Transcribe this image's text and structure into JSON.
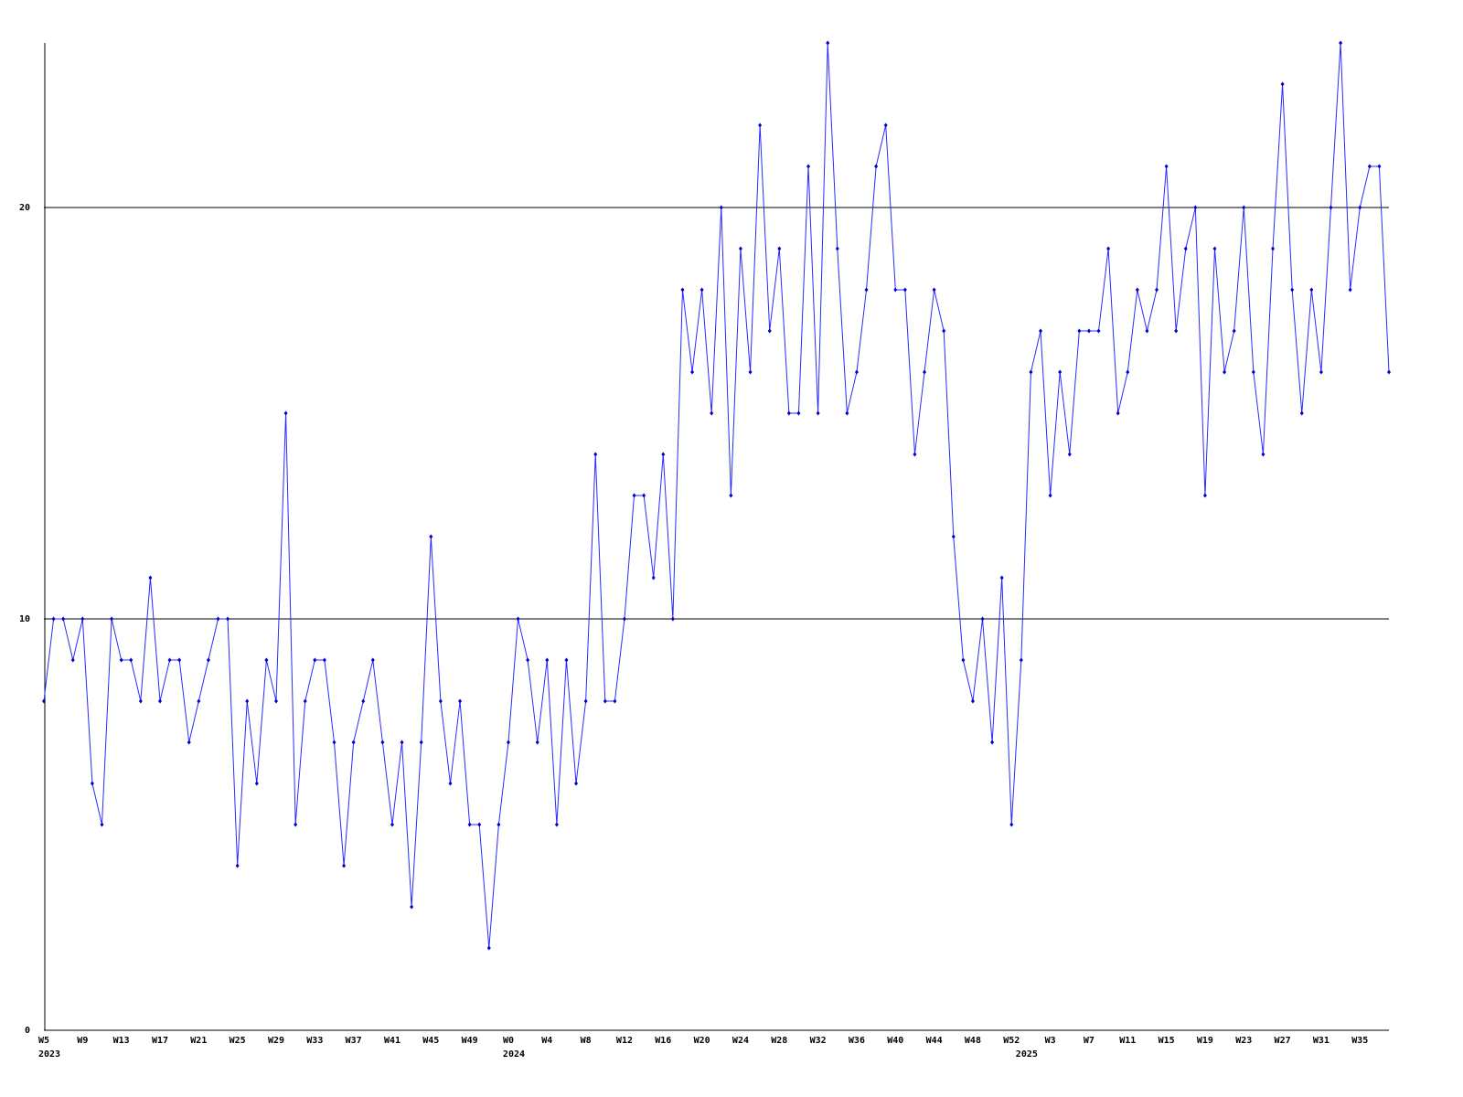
{
  "chart_data": {
    "type": "line",
    "categories": [
      "W5",
      null,
      null,
      null,
      "W9",
      null,
      null,
      null,
      "W13",
      null,
      null,
      null,
      "W17",
      null,
      null,
      null,
      "W21",
      null,
      null,
      null,
      "W25",
      null,
      null,
      null,
      "W29",
      null,
      null,
      null,
      "W33",
      null,
      null,
      null,
      "W37",
      null,
      null,
      null,
      "W41",
      null,
      null,
      null,
      "W45",
      null,
      null,
      null,
      "W49",
      null,
      null,
      null,
      "W0",
      null,
      null,
      null,
      "W4",
      null,
      null,
      null,
      "W8",
      null,
      null,
      null,
      "W12",
      null,
      null,
      null,
      "W16",
      null,
      null,
      null,
      "W20",
      null,
      null,
      null,
      "W24",
      null,
      null,
      null,
      "W28",
      null,
      null,
      null,
      "W32",
      null,
      null,
      null,
      "W36",
      null,
      null,
      null,
      "W40",
      null,
      null,
      null,
      "W44",
      null,
      null,
      null,
      "W48",
      null,
      null,
      null,
      "W52",
      null,
      null,
      null,
      "W3",
      null,
      null,
      null,
      "W7",
      null,
      null,
      null,
      "W11",
      null,
      null,
      null,
      "W15",
      null,
      null,
      null,
      "W19",
      null,
      null,
      null,
      "W23",
      null,
      null,
      null,
      "W27",
      null,
      null,
      null,
      "W31",
      null,
      null,
      null,
      "W35",
      null,
      null,
      null
    ],
    "year_labels": [
      "2023",
      null,
      null,
      null,
      null,
      null,
      null,
      null,
      null,
      null,
      null,
      null,
      null,
      null,
      null,
      null,
      null,
      null,
      null,
      null,
      null,
      null,
      null,
      null,
      null,
      null,
      null,
      null,
      null,
      null,
      null,
      null,
      null,
      null,
      null,
      null,
      null,
      null,
      null,
      null,
      null,
      null,
      null,
      null,
      null,
      null,
      null,
      null,
      "2024",
      null,
      null,
      null,
      null,
      null,
      null,
      null,
      null,
      null,
      null,
      null,
      null,
      null,
      null,
      null,
      null,
      null,
      null,
      null,
      null,
      null,
      null,
      null,
      null,
      null,
      null,
      null,
      null,
      null,
      null,
      null,
      null,
      null,
      null,
      null,
      null,
      null,
      null,
      null,
      null,
      null,
      null,
      null,
      null,
      null,
      null,
      null,
      null,
      null,
      null,
      null,
      null,
      "2025",
      null,
      null,
      null,
      null,
      null,
      null,
      null,
      null,
      null,
      null,
      null,
      null,
      null,
      null,
      null,
      null,
      null,
      null,
      null,
      null,
      null,
      null,
      null,
      null,
      null,
      null,
      null,
      null,
      null,
      null,
      null,
      null,
      null,
      null,
      null,
      null,
      null
    ],
    "values": [
      8,
      10,
      10,
      9,
      10,
      6,
      5,
      10,
      9,
      9,
      8,
      11,
      8,
      9,
      9,
      7,
      8,
      9,
      10,
      10,
      4,
      8,
      6,
      9,
      8,
      15,
      5,
      8,
      9,
      9,
      7,
      4,
      7,
      8,
      9,
      7,
      5,
      7,
      3,
      7,
      12,
      8,
      6,
      8,
      5,
      5,
      2,
      5,
      7,
      10,
      9,
      7,
      9,
      5,
      9,
      6,
      8,
      14,
      8,
      8,
      10,
      13,
      13,
      11,
      14,
      10,
      18,
      16,
      18,
      15,
      20,
      13,
      19,
      16,
      22,
      17,
      19,
      15,
      15,
      21,
      15,
      24,
      19,
      15,
      16,
      18,
      21,
      22,
      18,
      18,
      14,
      16,
      18,
      17,
      12,
      9,
      8,
      10,
      7,
      11,
      5,
      9,
      16,
      17,
      13,
      16,
      14,
      17,
      17,
      17,
      19,
      15,
      16,
      18,
      17,
      18,
      21,
      17,
      19,
      20,
      13,
      19,
      16,
      17,
      20,
      16,
      14,
      19,
      23,
      18,
      15,
      18,
      16,
      20,
      24,
      18,
      20,
      21,
      21,
      16
    ],
    "color": "#2a2aff",
    "ylim": [
      0,
      24
    ],
    "yticks": [
      0,
      10,
      20
    ],
    "grid": true
  }
}
